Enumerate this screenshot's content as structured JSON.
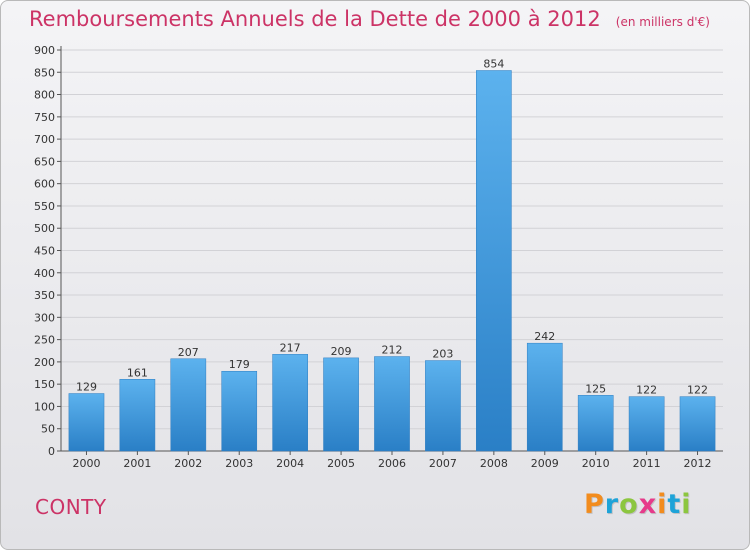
{
  "header": {
    "title": "Remboursements Annuels de la Dette de 2000 à 2012",
    "subtitle": "(en milliers d'€)"
  },
  "footer": {
    "city": "CONTY",
    "brand": "Proxiti",
    "brand_colors": [
      "#f28c1e",
      "#1ea3d8",
      "#8cc63f",
      "#e63a8a",
      "#f28c1e",
      "#1ea3d8",
      "#8cc63f"
    ]
  },
  "chart_data": {
    "type": "bar",
    "title": "Remboursements Annuels de la Dette de 2000 à 2012",
    "subtitle": "(en milliers d'€)",
    "categories": [
      "2000",
      "2001",
      "2002",
      "2003",
      "2004",
      "2005",
      "2006",
      "2007",
      "2008",
      "2009",
      "2010",
      "2011",
      "2012"
    ],
    "values": [
      129,
      161,
      207,
      179,
      217,
      209,
      212,
      203,
      854,
      242,
      125,
      122,
      122
    ],
    "ylim": [
      0,
      900
    ],
    "yticks": [
      0,
      50,
      100,
      150,
      200,
      250,
      300,
      350,
      400,
      450,
      500,
      550,
      600,
      650,
      700,
      750,
      800,
      850,
      900
    ],
    "grid": true,
    "bar_color": "#3d97dd",
    "xlabel": "",
    "ylabel": ""
  }
}
